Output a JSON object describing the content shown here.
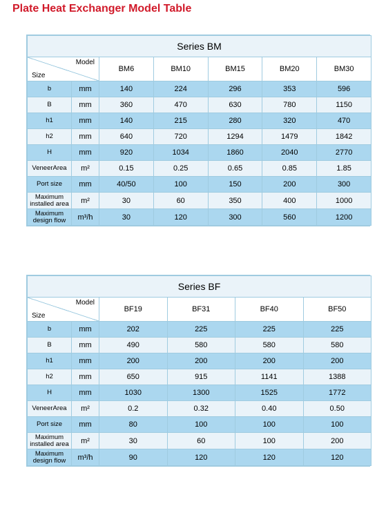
{
  "title": "Plate Heat Exchanger Model Table",
  "labels": {
    "model": "Model",
    "size": "Size"
  },
  "colors": {
    "title": "#d11a2a",
    "border": "#9fcbe0",
    "row_even": "#abd7ef",
    "row_odd": "#eaf3f9",
    "background": "#ffffff"
  },
  "tables": [
    {
      "series": "Series BM",
      "models": [
        "BM6",
        "BM10",
        "BM15",
        "BM20",
        "BM30"
      ],
      "rows": [
        {
          "param": "b",
          "unit": "mm",
          "values": [
            "140",
            "224",
            "296",
            "353",
            "596"
          ]
        },
        {
          "param": "B",
          "unit": "mm",
          "values": [
            "360",
            "470",
            "630",
            "780",
            "1150"
          ]
        },
        {
          "param": "h1",
          "unit": "mm",
          "values": [
            "140",
            "215",
            "280",
            "320",
            "470"
          ]
        },
        {
          "param": "h2",
          "unit": "mm",
          "values": [
            "640",
            "720",
            "1294",
            "1479",
            "1842"
          ]
        },
        {
          "param": "H",
          "unit": "mm",
          "values": [
            "920",
            "1034",
            "1860",
            "2040",
            "2770"
          ]
        },
        {
          "param": "VeneerArea",
          "unit": "m²",
          "values": [
            "0.15",
            "0.25",
            "0.65",
            "0.85",
            "1.85"
          ]
        },
        {
          "param": "Port size",
          "unit": "mm",
          "values": [
            "40/50",
            "100",
            "150",
            "200",
            "300"
          ]
        },
        {
          "param": "Maximum installed area",
          "unit": "m²",
          "values": [
            "30",
            "60",
            "350",
            "400",
            "1000"
          ]
        },
        {
          "param": "Maximum design flow",
          "unit": "m³/h",
          "values": [
            "30",
            "120",
            "300",
            "560",
            "1200"
          ]
        }
      ]
    },
    {
      "series": "Series BF",
      "models": [
        "BF19",
        "BF31",
        "BF40",
        "BF50"
      ],
      "rows": [
        {
          "param": "b",
          "unit": "mm",
          "values": [
            "202",
            "225",
            "225",
            "225"
          ]
        },
        {
          "param": "B",
          "unit": "mm",
          "values": [
            "490",
            "580",
            "580",
            "580"
          ]
        },
        {
          "param": "h1",
          "unit": "mm",
          "values": [
            "200",
            "200",
            "200",
            "200"
          ]
        },
        {
          "param": "h2",
          "unit": "mm",
          "values": [
            "650",
            "915",
            "1141",
            "1388"
          ]
        },
        {
          "param": "H",
          "unit": "mm",
          "values": [
            "1030",
            "1300",
            "1525",
            "1772"
          ]
        },
        {
          "param": "VeneerArea",
          "unit": "m²",
          "values": [
            "0.2",
            "0.32",
            "0.40",
            "0.50"
          ]
        },
        {
          "param": "Port size",
          "unit": "mm",
          "values": [
            "80",
            "100",
            "100",
            "100"
          ]
        },
        {
          "param": "Maximum installed area",
          "unit": "m²",
          "values": [
            "30",
            "60",
            "100",
            "200"
          ]
        },
        {
          "param": "Maximum design flow",
          "unit": "m³/h",
          "values": [
            "90",
            "120",
            "120",
            "120"
          ]
        }
      ]
    }
  ]
}
